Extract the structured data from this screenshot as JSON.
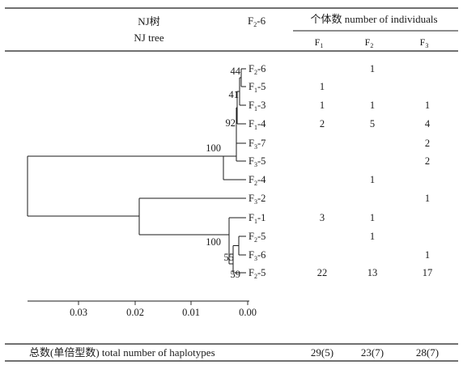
{
  "header": {
    "tree_title_cn": "NJ树",
    "tree_title_en": "NJ tree",
    "counts_title": "个体数 number of individuals",
    "extra_label_base": "F",
    "extra_label_sub": "2",
    "extra_label_tail": "-6"
  },
  "columns": [
    {
      "base": "F",
      "sub": "1"
    },
    {
      "base": "F",
      "sub": "2"
    },
    {
      "base": "F",
      "sub": "3"
    }
  ],
  "leaves": [
    {
      "base": "F",
      "sub": "2",
      "tail": "-6",
      "counts": [
        "",
        "1",
        ""
      ]
    },
    {
      "base": "F",
      "sub": "1",
      "tail": "-5",
      "counts": [
        "1",
        "",
        ""
      ]
    },
    {
      "base": "F",
      "sub": "1",
      "tail": "-3",
      "counts": [
        "1",
        "1",
        "1"
      ]
    },
    {
      "base": "F",
      "sub": "1",
      "tail": "-4",
      "counts": [
        "2",
        "5",
        "4"
      ]
    },
    {
      "base": "F",
      "sub": "3",
      "tail": "-7",
      "counts": [
        "",
        "",
        "2"
      ]
    },
    {
      "base": "F",
      "sub": "3",
      "tail": "-5",
      "counts": [
        "",
        "",
        "2"
      ]
    },
    {
      "base": "F",
      "sub": "2",
      "tail": "-4",
      "counts": [
        "",
        "1",
        ""
      ]
    },
    {
      "base": "F",
      "sub": "3",
      "tail": "-2",
      "counts": [
        "",
        "",
        "1"
      ]
    },
    {
      "base": "F",
      "sub": "1",
      "tail": "-1",
      "counts": [
        "3",
        "1",
        ""
      ]
    },
    {
      "base": "F",
      "sub": "2",
      "tail": "-5",
      "counts": [
        "",
        "1",
        ""
      ]
    },
    {
      "base": "F",
      "sub": "3",
      "tail": "-6",
      "counts": [
        "",
        "",
        "1"
      ]
    },
    {
      "base": "F",
      "sub": "2",
      "tail": "-5",
      "counts": [
        "22",
        "13",
        "17"
      ]
    }
  ],
  "bootstrap": [
    "44",
    "41",
    "92",
    "100",
    "100",
    "55",
    "59"
  ],
  "scale": {
    "ticks": [
      "0.03",
      "0.02",
      "0.01",
      "0.00"
    ]
  },
  "footer": {
    "label": "总数(单倍型数) total number of haplotypes",
    "totals": [
      "29(5)",
      "23(7)",
      "28(7)"
    ]
  }
}
